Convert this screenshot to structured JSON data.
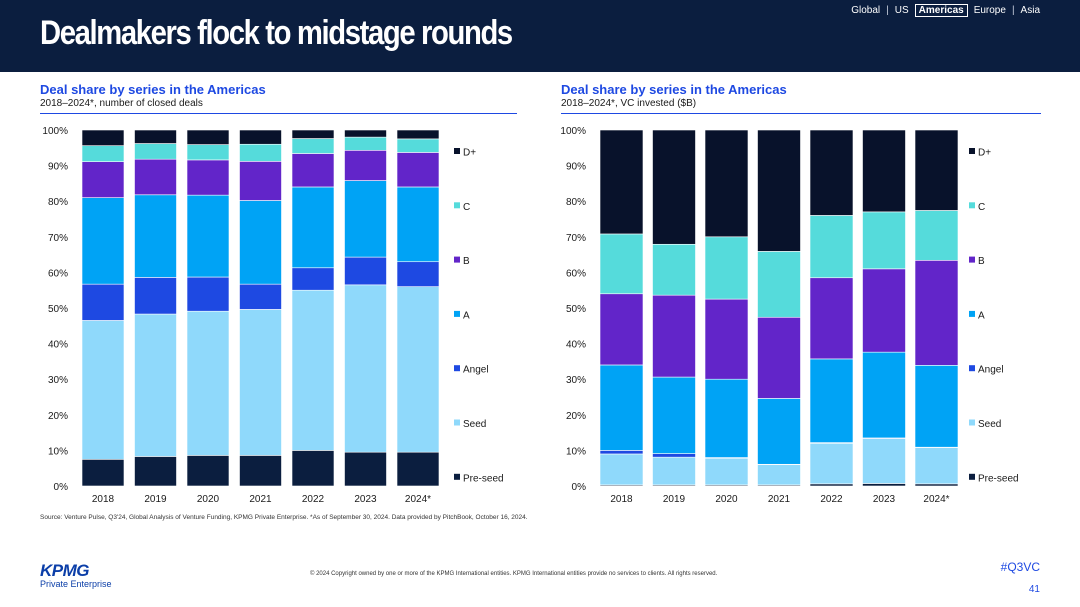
{
  "page": {
    "title": "Dealmakers flock to midstage rounds",
    "nav": [
      "Global",
      "US",
      "Americas",
      "Europe",
      "Asia"
    ],
    "nav_active": "Americas",
    "source": "Source: Venture Pulse, Q3'24, Global Analysis of Venture Funding, KPMG Private Enterprise. *As of September 30, 2024. Data provided by PitchBook, October 16, 2024.",
    "logo_text": "KPMG",
    "logo_subtext": "Private Enterprise",
    "copyright": "© 2024 Copyright owned by one or more of the KPMG International entities. KPMG International entities provide no services to clients. All rights reserved.",
    "hashtag": "#Q3VC",
    "page_number": "41"
  },
  "colors": {
    "Pre-seed": "#0b1e3f",
    "Seed": "#8fd9fb",
    "Angel": "#1e49e2",
    "A": "#00a3f5",
    "B": "#6225c9",
    "C": "#55dbdb",
    "D+": "#08122b",
    "title_blue": "#1e49e2",
    "header_bg": "#0b1e3f"
  },
  "chart_data": [
    {
      "type": "bar",
      "stacked": true,
      "title": "Deal share by series in the Americas",
      "subtitle": "2018–2024*, number of closed deals",
      "categories": [
        "2018",
        "2019",
        "2020",
        "2021",
        "2022",
        "2023",
        "2024*"
      ],
      "ylim": [
        0,
        100
      ],
      "yticks": [
        "0%",
        "10%",
        "20%",
        "30%",
        "40%",
        "50%",
        "60%",
        "70%",
        "80%",
        "90%",
        "100%"
      ],
      "series": [
        {
          "name": "Pre-seed",
          "values": [
            7.5,
            8.3,
            8.6,
            8.6,
            10.0,
            9.5,
            9.5
          ]
        },
        {
          "name": "Seed",
          "values": [
            39.0,
            40.0,
            40.5,
            41.0,
            45.0,
            47.0,
            46.5
          ]
        },
        {
          "name": "Angel",
          "values": [
            10.2,
            10.3,
            9.6,
            7.1,
            6.3,
            7.8,
            7.0
          ]
        },
        {
          "name": "A",
          "values": [
            24.3,
            23.2,
            23.0,
            23.5,
            22.7,
            21.5,
            21.0
          ]
        },
        {
          "name": "B",
          "values": [
            10.1,
            10.0,
            9.9,
            11.0,
            9.4,
            8.5,
            9.7
          ]
        },
        {
          "name": "C",
          "values": [
            4.5,
            4.4,
            4.3,
            4.8,
            4.2,
            3.7,
            3.8
          ]
        },
        {
          "name": "D+",
          "values": [
            4.4,
            3.8,
            4.1,
            4.0,
            2.4,
            2.0,
            2.5
          ]
        }
      ],
      "legend": [
        "D+",
        "C",
        "B",
        "A",
        "Angel",
        "Seed",
        "Pre-seed"
      ],
      "legend_position": "right"
    },
    {
      "type": "bar",
      "stacked": true,
      "title": "Deal share by series in the Americas",
      "subtitle": "2018–2024*, VC invested ($B)",
      "categories": [
        "2018",
        "2019",
        "2020",
        "2021",
        "2022",
        "2023",
        "2024*"
      ],
      "ylim": [
        0,
        100
      ],
      "yticks": [
        "0%",
        "10%",
        "20%",
        "30%",
        "40%",
        "50%",
        "60%",
        "70%",
        "80%",
        "90%",
        "100%"
      ],
      "series": [
        {
          "name": "Pre-seed",
          "values": [
            0.3,
            0.3,
            0.3,
            0.3,
            0.6,
            0.7,
            0.6
          ]
        },
        {
          "name": "Seed",
          "values": [
            8.7,
            7.8,
            7.5,
            5.7,
            11.4,
            12.6,
            10.2
          ]
        },
        {
          "name": "Angel",
          "values": [
            1.0,
            1.0,
            0.2,
            0.1,
            0.2,
            0.2,
            0.1
          ]
        },
        {
          "name": "A",
          "values": [
            24.0,
            21.5,
            22.0,
            18.5,
            23.5,
            24.1,
            23.0
          ]
        },
        {
          "name": "B",
          "values": [
            20.0,
            23.0,
            22.5,
            22.8,
            22.8,
            23.4,
            29.5
          ]
        },
        {
          "name": "C",
          "values": [
            16.8,
            14.3,
            17.5,
            18.5,
            17.5,
            16.0,
            14.0
          ]
        },
        {
          "name": "D+",
          "values": [
            29.2,
            32.1,
            30.0,
            34.1,
            24.0,
            23.0,
            22.6
          ]
        }
      ],
      "legend": [
        "D+",
        "C",
        "B",
        "A",
        "Angel",
        "Seed",
        "Pre-seed"
      ],
      "legend_position": "right"
    }
  ]
}
